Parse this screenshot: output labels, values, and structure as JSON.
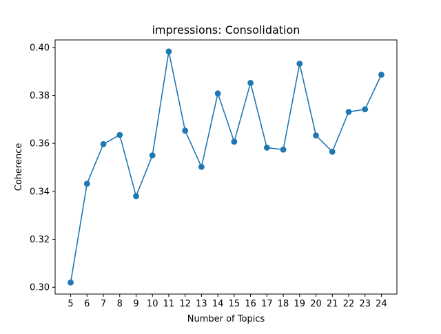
{
  "chart_data": {
    "type": "line",
    "title": "impressions: Consolidation",
    "xlabel": "Number of Topics",
    "ylabel": "Coherence",
    "x": [
      5,
      6,
      7,
      8,
      9,
      10,
      11,
      12,
      13,
      14,
      15,
      16,
      17,
      18,
      19,
      20,
      21,
      22,
      23,
      24
    ],
    "series": [
      {
        "values": [
          0.302,
          0.3432,
          0.3597,
          0.3635,
          0.338,
          0.355,
          0.3983,
          0.3653,
          0.3502,
          0.3808,
          0.3607,
          0.3852,
          0.3582,
          0.3574,
          0.3932,
          0.3633,
          0.3565,
          0.3731,
          0.3742,
          0.3886
        ],
        "color": "#1f77b4",
        "marker": "circle"
      }
    ],
    "xticks": [
      "5",
      "6",
      "7",
      "8",
      "9",
      "10",
      "11",
      "12",
      "13",
      "14",
      "15",
      "16",
      "17",
      "18",
      "19",
      "20",
      "21",
      "22",
      "23",
      "24"
    ],
    "yticks": [
      "0.30",
      "0.32",
      "0.34",
      "0.36",
      "0.38",
      "0.40"
    ],
    "ylim": [
      0.2972,
      0.4031
    ],
    "xlim": [
      4.05,
      24.95
    ],
    "grid": false,
    "legend": "none"
  }
}
